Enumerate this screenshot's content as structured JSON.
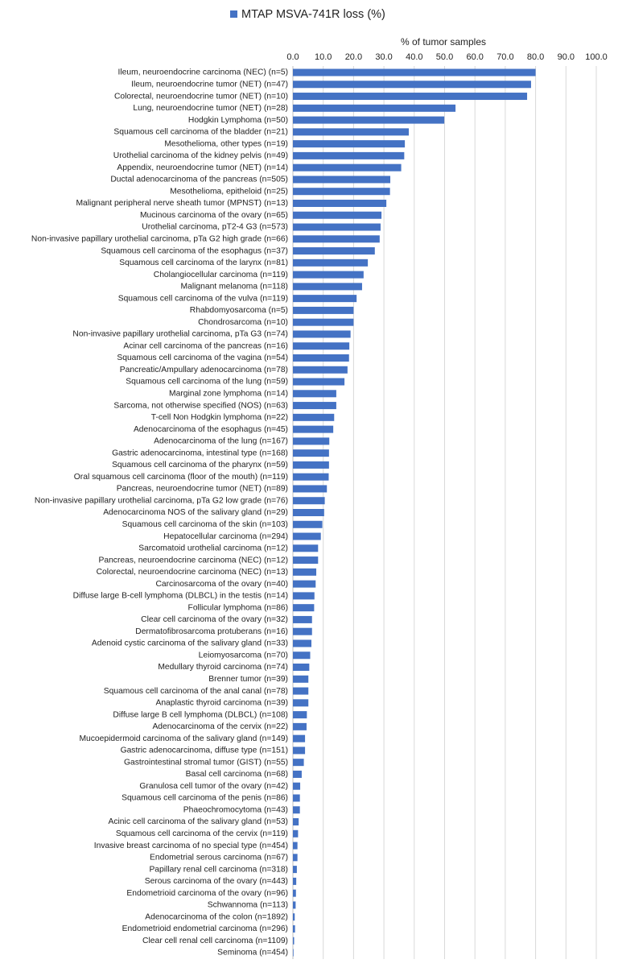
{
  "chart_data": {
    "type": "bar",
    "orientation": "horizontal",
    "x_label": "% of tumor samples",
    "legend": "top",
    "grid": true,
    "xlim": [
      0,
      100
    ],
    "xticks": [
      {
        "value": 0,
        "label": "0.0"
      },
      {
        "value": 10,
        "label": "10.0"
      },
      {
        "value": 20,
        "label": "20.0"
      },
      {
        "value": 30,
        "label": "30.0"
      },
      {
        "value": 40,
        "label": "40.0"
      },
      {
        "value": 50,
        "label": "50.0"
      },
      {
        "value": 60,
        "label": "60.0"
      },
      {
        "value": 70,
        "label": "70.0"
      },
      {
        "value": 80,
        "label": "80.0"
      },
      {
        "value": 90,
        "label": "90.0"
      },
      {
        "value": 100,
        "label": "100.0"
      }
    ],
    "categories": [
      "Ileum, neuroendocrine carcinoma (NEC) (n=5)",
      "Ileum, neuroendocrine tumor (NET) (n=47)",
      "Colorectal, neuroendocrine tumor (NET) (n=10)",
      "Lung, neuroendocrine tumor (NET) (n=28)",
      "Hodgkin Lymphoma (n=50)",
      "Squamous cell carcinoma of the bladder (n=21)",
      "Mesothelioma, other types (n=19)",
      "Urothelial carcinoma of the kidney pelvis (n=49)",
      "Appendix, neuroendocrine tumor (NET) (n=14)",
      "Ductal adenocarcinoma of the pancreas (n=505)",
      "Mesothelioma, epitheloid (n=25)",
      "Malignant peripheral nerve sheath tumor (MPNST) (n=13)",
      "Mucinous carcinoma of the ovary (n=65)",
      "Urothelial carcinoma, pT2-4 G3 (n=573)",
      "Non-invasive papillary urothelial carcinoma, pTa G2 high grade (n=66)",
      "Squamous cell carcinoma of the esophagus (n=37)",
      "Squamous cell carcinoma of the larynx (n=81)",
      "Cholangiocellular carcinoma (n=119)",
      "Malignant melanoma (n=118)",
      "Squamous cell carcinoma of the vulva (n=119)",
      "Rhabdomyosarcoma (n=5)",
      "Chondrosarcoma (n=10)",
      "Non-invasive papillary urothelial carcinoma, pTa G3 (n=74)",
      "Acinar cell carcinoma of the pancreas (n=16)",
      "Squamous cell carcinoma of the vagina (n=54)",
      "Pancreatic/Ampullary adenocarcinoma (n=78)",
      "Squamous cell carcinoma of the lung (n=59)",
      "Marginal zone lymphoma (n=14)",
      "Sarcoma, not otherwise specified (NOS) (n=63)",
      "T-cell Non Hodgkin lymphoma (n=22)",
      "Adenocarcinoma of the esophagus (n=45)",
      "Adenocarcinoma of the lung (n=167)",
      "Gastric adenocarcinoma, intestinal type (n=168)",
      "Squamous cell carcinoma of the pharynx (n=59)",
      "Oral squamous cell carcinoma (floor of the mouth) (n=119)",
      "Pancreas, neuroendocrine tumor (NET) (n=89)",
      "Non-invasive papillary urothelial carcinoma, pTa G2 low grade (n=76)",
      "Adenocarcinoma NOS of the salivary gland (n=29)",
      "Squamous cell carcinoma of the skin (n=103)",
      "Hepatocellular carcinoma (n=294)",
      "Sarcomatoid urothelial carcinoma (n=12)",
      "Pancreas, neuroendocrine carcinoma (NEC) (n=12)",
      "Colorectal, neuroendocrine carcinoma (NEC) (n=13)",
      "Carcinosarcoma of the ovary (n=40)",
      "Diffuse large B-cell lymphoma (DLBCL) in the testis (n=14)",
      "Follicular lymphoma (n=86)",
      "Clear cell carcinoma of the ovary (n=32)",
      "Dermatofibrosarcoma protuberans (n=16)",
      "Adenoid cystic carcinoma of the salivary gland (n=33)",
      "Leiomyosarcoma (n=70)",
      "Medullary thyroid carcinoma (n=74)",
      "Brenner tumor (n=39)",
      "Squamous cell carcinoma of the anal canal (n=78)",
      "Anaplastic thyroid carcinoma (n=39)",
      "Diffuse large B cell lymphoma (DLBCL) (n=108)",
      "Adenocarcinoma of the cervix (n=22)",
      "Mucoepidermoid carcinoma of the salivary gland (n=149)",
      "Gastric adenocarcinoma, diffuse type (n=151)",
      "Gastrointestinal stromal tumor (GIST) (n=55)",
      "Basal cell carcinoma (n=68)",
      "Granulosa cell tumor of the ovary (n=42)",
      "Squamous cell carcinoma of the penis (n=86)",
      "Phaeochromocytoma (n=43)",
      "Acinic cell carcinoma of the salivary gland (n=53)",
      "Squamous cell carcinoma of the cervix (n=119)",
      "Invasive breast carcinoma of no special type (n=454)",
      "Endometrial serous carcinoma (n=67)",
      "Papillary renal cell carcinoma (n=318)",
      "Serous carcinoma of the ovary (n=443)",
      "Endometrioid carcinoma of the ovary (n=96)",
      "Schwannoma (n=113)",
      "Adenocarcinoma of the colon (n=1892)",
      "Endometrioid endometrial carcinoma (n=296)",
      "Clear cell renal cell carcinoma (n=1109)",
      "Seminoma (n=454)"
    ],
    "series": [
      {
        "name": "MTAP MSVA-741R loss (%)",
        "color": "#4472c4",
        "values": [
          80,
          78.5,
          77.2,
          53.6,
          49.9,
          38.2,
          36.9,
          36.7,
          35.7,
          32.1,
          32,
          30.8,
          29.2,
          28.9,
          28.6,
          27,
          24.7,
          23.3,
          22.8,
          21,
          20,
          20,
          19,
          18.6,
          18.5,
          18,
          17,
          14.3,
          14.3,
          13.6,
          13.3,
          12,
          11.9,
          11.9,
          11.8,
          11.2,
          10.5,
          10.3,
          9.7,
          9.2,
          8.3,
          8.3,
          7.7,
          7.5,
          7.1,
          7,
          6.3,
          6.3,
          6.1,
          5.7,
          5.4,
          5.1,
          5.1,
          5.1,
          4.6,
          4.5,
          4,
          4,
          3.6,
          2.9,
          2.4,
          2.3,
          2.3,
          1.9,
          1.7,
          1.5,
          1.5,
          1.3,
          1.1,
          1,
          0.9,
          0.6,
          0.7,
          0.4,
          0.2
        ]
      }
    ]
  }
}
